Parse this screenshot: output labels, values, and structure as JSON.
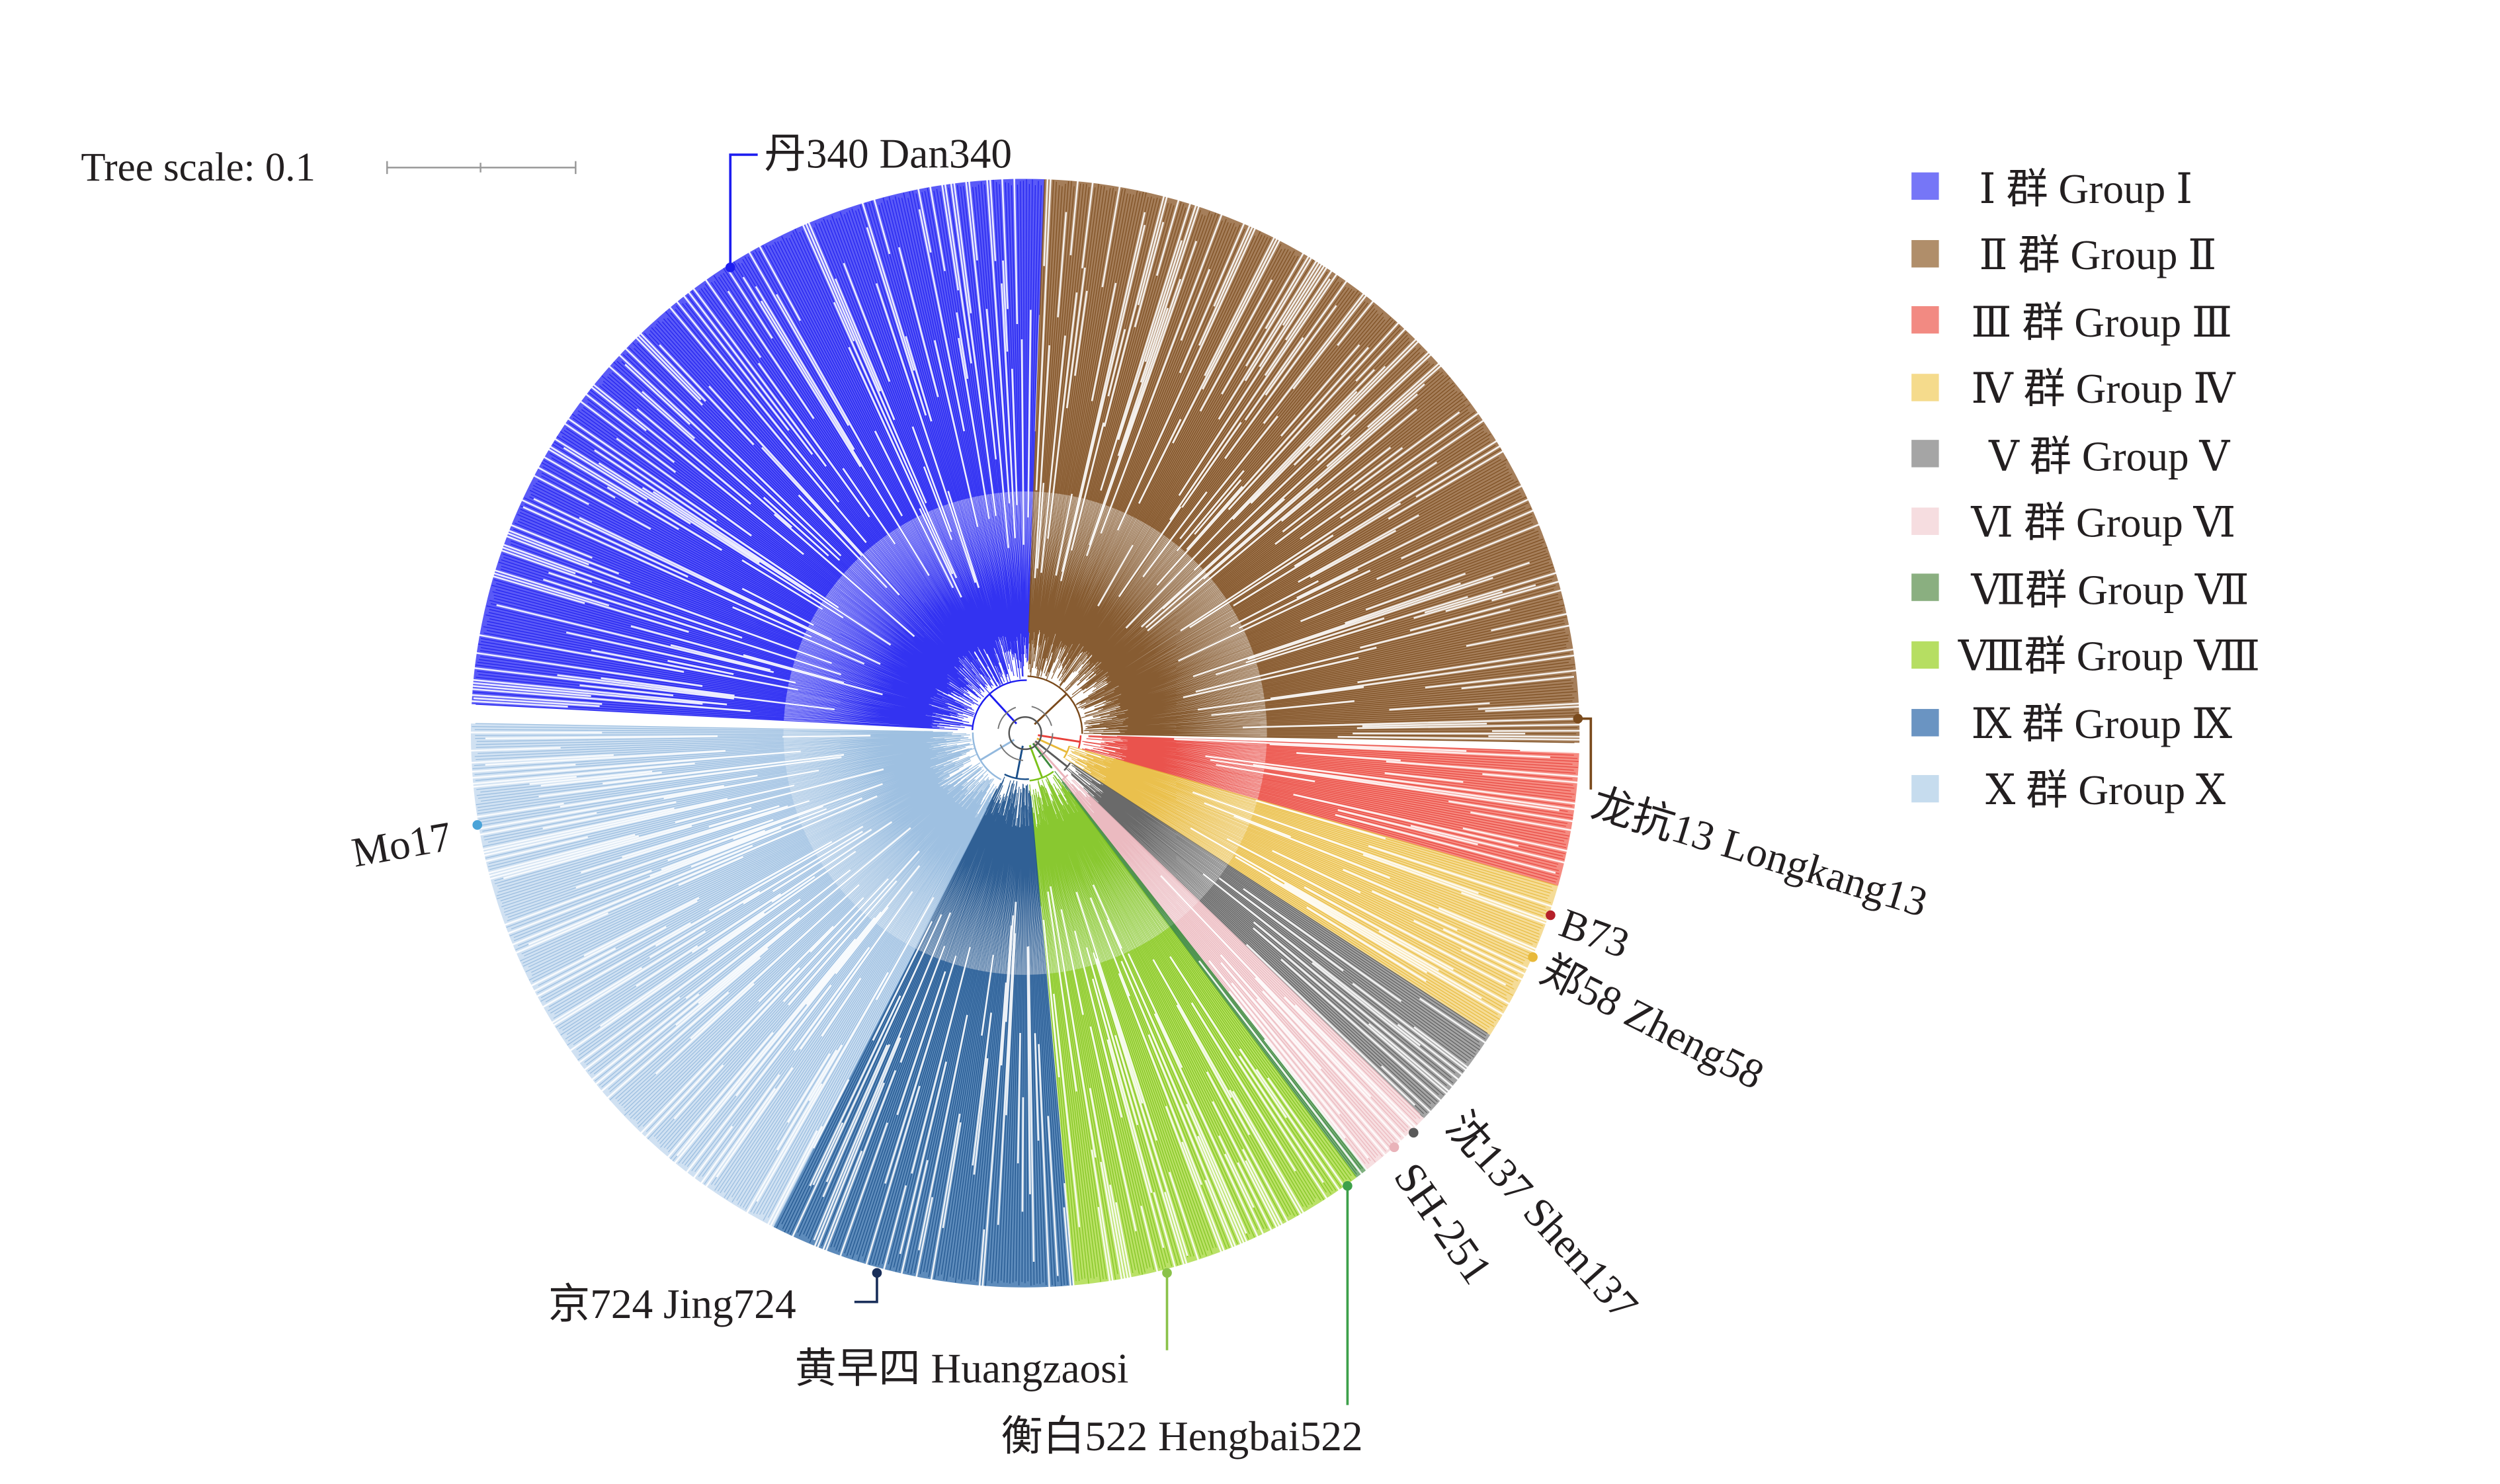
{
  "tree_scale": {
    "label": "Tree scale: 0.1"
  },
  "groups": [
    {
      "legend": "Ⅰ  群  Group  Ⅰ",
      "color": "#2b2bf5",
      "swatch": "#7676f7",
      "branch": "#1d1df0",
      "start": 183,
      "end": 272,
      "highlight_lightness": 62
    },
    {
      "legend": "Ⅱ 群  Group  Ⅱ",
      "color": "#8c5a2b",
      "swatch": "#b08e6a",
      "branch": "#7a4a1c",
      "start": 272,
      "end": 361,
      "highlight_lightness": 60
    },
    {
      "legend": "Ⅲ 群  Group  Ⅲ",
      "color": "#f26a5e",
      "swatch": "#f28a82",
      "branch": "#e8403a",
      "start": 362,
      "end": 376,
      "highlight_lightness": 68
    },
    {
      "legend": "Ⅳ 群  Group  Ⅳ",
      "color": "#f2d27a",
      "swatch": "#f5db8c",
      "branch": "#e8b93a",
      "start": 376,
      "end": 393,
      "highlight_lightness": 74
    },
    {
      "legend": "Ⅴ 群  Group  Ⅴ",
      "color": "#8a8a8a",
      "swatch": "#a5a5a5",
      "branch": "#5a5a5a",
      "start": 393,
      "end": 404,
      "highlight_lightness": 55
    },
    {
      "legend": "Ⅵ 群  Group  Ⅵ",
      "color": "#f5d6d9",
      "swatch": "#f6dde0",
      "branch": "#e9b3b9",
      "start": 404,
      "end": 412,
      "highlight_lightness": 88
    },
    {
      "legend": "Ⅶ群  Group  Ⅶ",
      "color": "#5b9a5b",
      "swatch": "#8aaf80",
      "branch": "#3d8a3d",
      "start": 412,
      "end": 413.3,
      "highlight_lightness": 55
    },
    {
      "legend": "Ⅷ群  Group Ⅷ",
      "color": "#a6d83c",
      "swatch": "#b6de62",
      "branch": "#7cc21a",
      "start": 413.3,
      "end": 445,
      "highlight_lightness": 62
    },
    {
      "legend": "Ⅸ 群  Group  Ⅸ",
      "color": "#2f6aa8",
      "swatch": "#6a94c2",
      "branch": "#1a4f8a",
      "start": 445,
      "end": 477,
      "highlight_lightness": 52
    },
    {
      "legend": "Ⅹ 群  Group  Ⅹ",
      "color": "#c3d9ee",
      "swatch": "#c6dcee",
      "branch": "#93b9de",
      "start": 477,
      "end": 541,
      "highlight_lightness": 86
    }
  ],
  "labels": [
    {
      "id": "dan340",
      "text": "丹340 Dan340",
      "color": "#1d1df0"
    },
    {
      "id": "longkang13",
      "text": "龙抗13 Longkang13",
      "color": "#7a4a1c"
    },
    {
      "id": "b73",
      "text": "B73",
      "color": "#b5202a"
    },
    {
      "id": "zheng58",
      "text": "郑58 Zheng58",
      "color": "#e8b93a"
    },
    {
      "id": "shen137",
      "text": "沈137 Shen137",
      "color": "#5a5a5a"
    },
    {
      "id": "sh251",
      "text": "SH-251",
      "color": "#e9b3b9"
    },
    {
      "id": "hengbai522",
      "text": "衡白522 Hengbai522",
      "color": "#3da04a"
    },
    {
      "id": "huangzaosi",
      "text": "黄早四  Huangzaosi",
      "color": "#8ac24a"
    },
    {
      "id": "jing724",
      "text": "京724 Jing724",
      "color": "#1a2f5a"
    },
    {
      "id": "mo17",
      "text": "Mo17",
      "color": "#4aa3d8"
    }
  ]
}
